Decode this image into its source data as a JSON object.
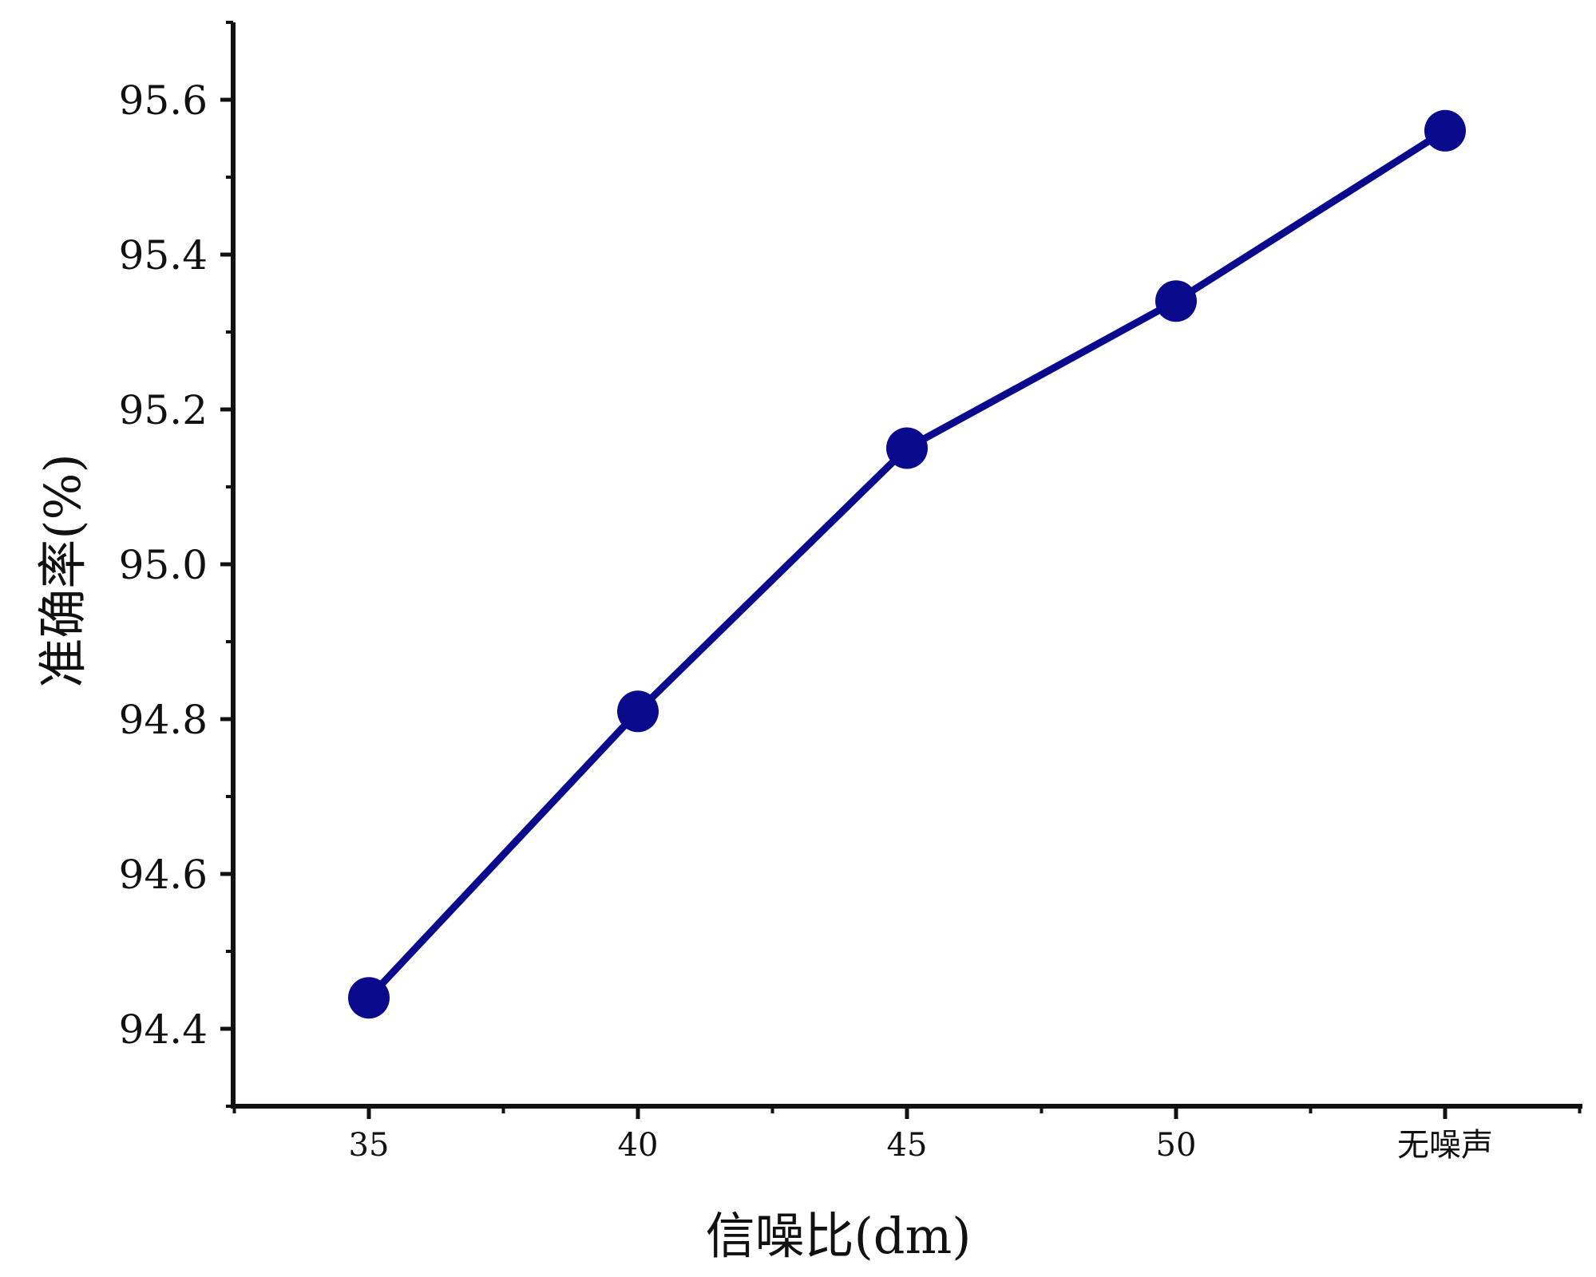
{
  "chart_data": {
    "type": "line",
    "xlabel": "信噪比(dm)",
    "ylabel": "准确率(%)",
    "categories": [
      "35",
      "40",
      "45",
      "50",
      "无噪声"
    ],
    "series": [
      {
        "values": [
          94.44,
          94.81,
          95.15,
          95.34,
          95.56
        ]
      }
    ],
    "ylim": [
      94.3,
      95.7
    ],
    "yticks": [
      "94.4",
      "94.6",
      "94.8",
      "95.0",
      "95.2",
      "95.4",
      "95.6"
    ],
    "grid": false,
    "line_color": "#0a0a8c",
    "marker_color": "#0a0a8c",
    "axis_color": "#111111"
  }
}
